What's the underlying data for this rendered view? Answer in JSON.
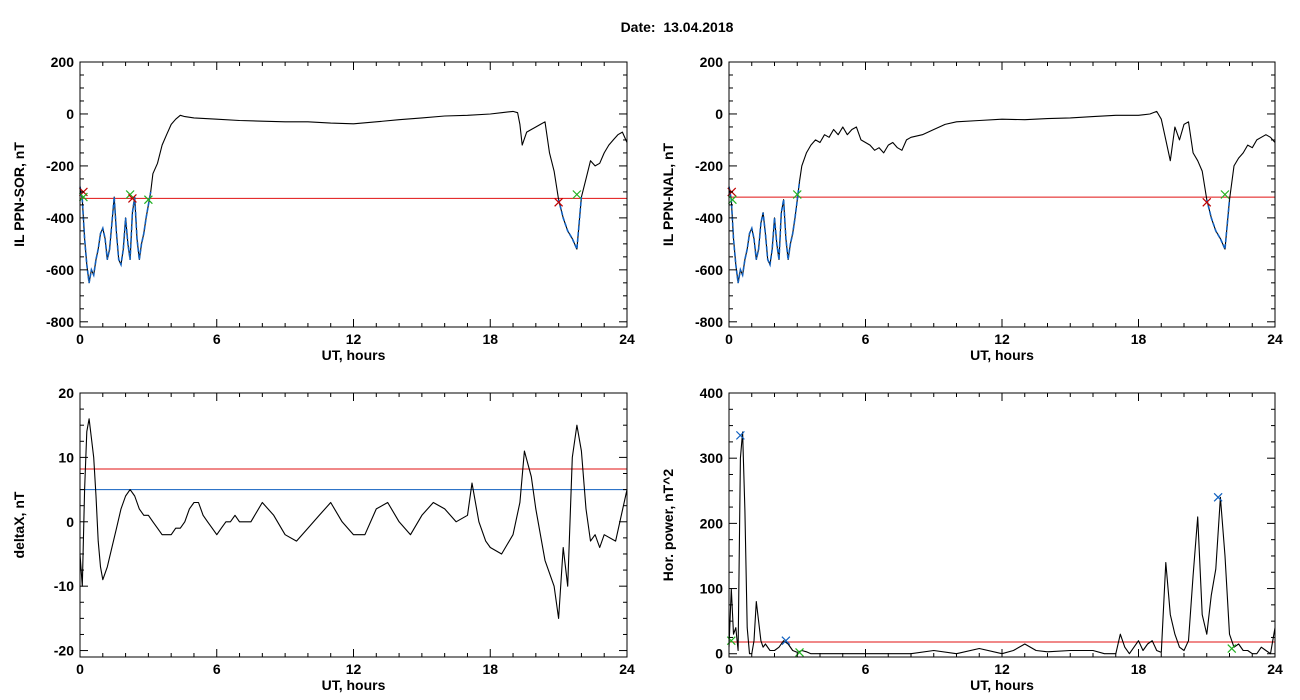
{
  "page": {
    "date_label": "Date:  13.04.2018"
  },
  "colors": {
    "trace": "#000000",
    "threshold_red": "#e01010",
    "threshold_blue": "#1060c0",
    "event_red": "#c00000",
    "event_green": "#20b020",
    "event_blue": "#1060c0"
  },
  "chart_data": [
    {
      "type": "line",
      "id": "ppn-sor",
      "xlabel": "UT, hours",
      "ylabel": "IL PPN-SOR, nT",
      "xlim": [
        0,
        24
      ],
      "ylim": [
        -820,
        200
      ],
      "xticks": [
        0,
        6,
        12,
        18,
        24
      ],
      "yticks": [
        -800,
        -600,
        -400,
        -200,
        0,
        200
      ],
      "series": [
        {
          "x": [
            0,
            0.1,
            0.2,
            0.3,
            0.4,
            0.5,
            0.6,
            0.7,
            0.8,
            0.9,
            1.0,
            1.1,
            1.2,
            1.3,
            1.4,
            1.5,
            1.6,
            1.7,
            1.8,
            1.9,
            2.0,
            2.1,
            2.2,
            2.3,
            2.4,
            2.5,
            2.6,
            2.7,
            2.8,
            2.9,
            3.0,
            3.1,
            3.2,
            3.4,
            3.6,
            3.8,
            4.0,
            4.2,
            4.4,
            4.6,
            5,
            6,
            7,
            8,
            9,
            10,
            11,
            12,
            13,
            14,
            15,
            16,
            17,
            18,
            18.5,
            19,
            19.2,
            19.3,
            19.4,
            19.6,
            19.8,
            20.0,
            20.2,
            20.4,
            20.6,
            20.8,
            21.0,
            21.2,
            21.4,
            21.6,
            21.8,
            22.0,
            22.2,
            22.4,
            22.6,
            22.8,
            23.0,
            23.2,
            23.4,
            23.6,
            23.8,
            24
          ],
          "y": [
            -280,
            -330,
            -480,
            -580,
            -650,
            -600,
            -620,
            -560,
            -520,
            -460,
            -440,
            -480,
            -560,
            -520,
            -420,
            -320,
            -460,
            -560,
            -580,
            -520,
            -400,
            -500,
            -560,
            -380,
            -320,
            -480,
            -560,
            -500,
            -460,
            -400,
            -350,
            -300,
            -230,
            -190,
            -120,
            -80,
            -40,
            -20,
            -5,
            -10,
            -15,
            -20,
            -25,
            -28,
            -30,
            -30,
            -35,
            -38,
            -30,
            -22,
            -15,
            -8,
            -5,
            0,
            5,
            10,
            5,
            -40,
            -120,
            -70,
            -60,
            -50,
            -40,
            -30,
            -150,
            -220,
            -330,
            -400,
            -450,
            -480,
            -520,
            -320,
            -250,
            -180,
            -200,
            -190,
            -150,
            -120,
            -100,
            -80,
            -70,
            -110
          ]
        }
      ],
      "thresholds": [
        {
          "value": -325,
          "color": "red"
        }
      ],
      "highlight_ranges": [
        [
          0,
          3.1
        ],
        [
          21.0,
          22.0
        ]
      ],
      "markers": [
        {
          "x": 0.15,
          "y": -300,
          "color": "red"
        },
        {
          "x": 0.15,
          "y": -320,
          "color": "green"
        },
        {
          "x": 2.2,
          "y": -310,
          "color": "green"
        },
        {
          "x": 2.3,
          "y": -325,
          "color": "red"
        },
        {
          "x": 3.0,
          "y": -330,
          "color": "green"
        },
        {
          "x": 21.0,
          "y": -340,
          "color": "red"
        },
        {
          "x": 21.8,
          "y": -310,
          "color": "green"
        }
      ]
    },
    {
      "type": "line",
      "id": "ppn-nal",
      "xlabel": "UT, hours",
      "ylabel": "IL PPN-NAL, nT",
      "xlim": [
        0,
        24
      ],
      "ylim": [
        -820,
        200
      ],
      "xticks": [
        0,
        6,
        12,
        18,
        24
      ],
      "yticks": [
        -800,
        -600,
        -400,
        -200,
        0,
        200
      ],
      "series": [
        {
          "x": [
            0,
            0.1,
            0.2,
            0.3,
            0.4,
            0.5,
            0.6,
            0.7,
            0.8,
            0.9,
            1.0,
            1.1,
            1.2,
            1.3,
            1.4,
            1.5,
            1.6,
            1.7,
            1.8,
            1.9,
            2.0,
            2.1,
            2.2,
            2.3,
            2.4,
            2.5,
            2.6,
            2.7,
            2.8,
            2.9,
            3.0,
            3.1,
            3.2,
            3.4,
            3.6,
            3.8,
            4.0,
            4.2,
            4.4,
            4.6,
            4.8,
            5.0,
            5.2,
            5.4,
            5.6,
            5.8,
            6.0,
            6.2,
            6.4,
            6.6,
            6.8,
            7.0,
            7.2,
            7.4,
            7.6,
            7.8,
            8.0,
            8.5,
            9,
            9.5,
            10,
            11,
            12,
            13,
            14,
            15,
            16,
            17,
            18,
            18.5,
            18.8,
            19.0,
            19.2,
            19.4,
            19.6,
            19.8,
            20.0,
            20.2,
            20.4,
            20.6,
            20.8,
            21.0,
            21.2,
            21.4,
            21.6,
            21.8,
            22.0,
            22.2,
            22.4,
            22.6,
            22.8,
            23.0,
            23.2,
            23.4,
            23.6,
            23.8,
            24
          ],
          "y": [
            -280,
            -330,
            -480,
            -580,
            -650,
            -600,
            -620,
            -560,
            -520,
            -460,
            -440,
            -480,
            -560,
            -520,
            -420,
            -380,
            -460,
            -560,
            -580,
            -520,
            -400,
            -500,
            -560,
            -380,
            -330,
            -480,
            -560,
            -500,
            -460,
            -400,
            -330,
            -260,
            -200,
            -150,
            -120,
            -100,
            -110,
            -80,
            -90,
            -60,
            -80,
            -50,
            -80,
            -60,
            -50,
            -100,
            -110,
            -120,
            -140,
            -130,
            -150,
            -120,
            -110,
            -130,
            -140,
            -100,
            -90,
            -80,
            -60,
            -40,
            -30,
            -25,
            -20,
            -22,
            -18,
            -15,
            -10,
            -5,
            -5,
            0,
            10,
            -20,
            -100,
            -180,
            -50,
            -100,
            -40,
            -30,
            -150,
            -180,
            -220,
            -330,
            -400,
            -450,
            -480,
            -520,
            -330,
            -200,
            -170,
            -150,
            -120,
            -130,
            -100,
            -90,
            -80,
            -90,
            -110
          ]
        }
      ],
      "thresholds": [
        {
          "value": -320,
          "color": "red"
        }
      ],
      "highlight_ranges": [
        [
          0,
          3.1
        ],
        [
          21.0,
          22.0
        ]
      ],
      "markers": [
        {
          "x": 0.12,
          "y": -300,
          "color": "red"
        },
        {
          "x": 0.15,
          "y": -330,
          "color": "green"
        },
        {
          "x": 3.0,
          "y": -310,
          "color": "green"
        },
        {
          "x": 21.0,
          "y": -340,
          "color": "red"
        },
        {
          "x": 21.8,
          "y": -310,
          "color": "green"
        }
      ]
    },
    {
      "type": "line",
      "id": "deltax",
      "xlabel": "UT, hours",
      "ylabel": "deltaX, nT",
      "xlim": [
        0,
        24
      ],
      "ylim": [
        -21,
        20
      ],
      "xticks": [
        0,
        6,
        12,
        18,
        24
      ],
      "yticks": [
        -20,
        -10,
        0,
        10,
        20
      ],
      "series": [
        {
          "x": [
            0,
            0.1,
            0.2,
            0.3,
            0.4,
            0.5,
            0.6,
            0.7,
            0.8,
            0.9,
            1.0,
            1.2,
            1.4,
            1.6,
            1.8,
            2.0,
            2.2,
            2.4,
            2.6,
            2.8,
            3.0,
            3.2,
            3.4,
            3.6,
            3.8,
            4.0,
            4.2,
            4.4,
            4.6,
            4.8,
            5.0,
            5.2,
            5.4,
            5.6,
            5.8,
            6.0,
            6.2,
            6.4,
            6.6,
            6.8,
            7.0,
            7.5,
            8.0,
            8.5,
            9.0,
            9.5,
            10.0,
            10.5,
            11.0,
            11.5,
            12.0,
            12.5,
            13.0,
            13.5,
            14.0,
            14.5,
            15.0,
            15.5,
            16.0,
            16.5,
            17.0,
            17.2,
            17.5,
            17.8,
            18.0,
            18.5,
            19.0,
            19.3,
            19.5,
            19.8,
            20.0,
            20.4,
            20.8,
            21.0,
            21.2,
            21.4,
            21.6,
            21.8,
            22.0,
            22.2,
            22.4,
            22.6,
            22.8,
            23.0,
            23.5,
            24.0
          ],
          "y": [
            -5,
            -10,
            5,
            14,
            16,
            13,
            10,
            4,
            -3,
            -7,
            -9,
            -7,
            -4,
            -1,
            2,
            4,
            5,
            4,
            2,
            1,
            1,
            0,
            -1,
            -2,
            -2,
            -2,
            -1,
            -1,
            0,
            2,
            3,
            3,
            1,
            0,
            -1,
            -2,
            -1,
            0,
            0,
            1,
            0,
            0,
            3,
            1,
            -2,
            -3,
            -1,
            1,
            3,
            0,
            -2,
            -2,
            2,
            3,
            0,
            -2,
            1,
            3,
            2,
            0,
            1,
            6,
            0,
            -3,
            -4,
            -5,
            -2,
            3,
            11,
            7,
            2,
            -6,
            -10,
            -15,
            -4,
            -10,
            10,
            15,
            11,
            2,
            -3,
            -2,
            -4,
            -2,
            -3,
            5
          ]
        }
      ],
      "thresholds": [
        {
          "value": 8.2,
          "color": "red"
        },
        {
          "value": 5,
          "color": "blue"
        }
      ]
    },
    {
      "type": "line",
      "id": "hor-power",
      "xlabel": "UT, hours",
      "ylabel": "Hor. power, nT^2",
      "xlim": [
        0,
        24
      ],
      "ylim": [
        -5,
        400
      ],
      "xticks": [
        0,
        6,
        12,
        18,
        24
      ],
      "yticks": [
        0,
        100,
        200,
        300,
        400
      ],
      "series": [
        {
          "x": [
            0,
            0.1,
            0.2,
            0.3,
            0.4,
            0.5,
            0.6,
            0.7,
            0.8,
            0.9,
            1.0,
            1.1,
            1.2,
            1.3,
            1.4,
            1.5,
            1.6,
            1.8,
            2.0,
            2.2,
            2.4,
            2.6,
            2.8,
            3.0,
            3.2,
            3.4,
            3.6,
            3.8,
            4.0,
            4.5,
            5,
            6,
            7,
            8,
            9,
            10,
            11,
            12,
            12.5,
            13,
            13.5,
            14,
            15,
            16,
            16.5,
            17.0,
            17.2,
            17.4,
            17.6,
            18.0,
            18.2,
            18.4,
            18.6,
            18.8,
            19.0,
            19.2,
            19.4,
            19.6,
            19.8,
            20.0,
            20.2,
            20.4,
            20.6,
            20.8,
            21.0,
            21.2,
            21.4,
            21.6,
            21.8,
            22.0,
            22.2,
            22.4,
            22.6,
            22.8,
            23.0,
            23.2,
            23.4,
            23.6,
            23.8,
            24.0
          ],
          "y": [
            10,
            100,
            30,
            40,
            5,
            300,
            340,
            220,
            40,
            0,
            0,
            20,
            80,
            50,
            20,
            10,
            15,
            5,
            5,
            10,
            20,
            15,
            5,
            2,
            5,
            3,
            0,
            0,
            0,
            0,
            0,
            0,
            0,
            0,
            5,
            0,
            8,
            0,
            5,
            15,
            5,
            3,
            5,
            5,
            0,
            0,
            30,
            10,
            0,
            20,
            5,
            15,
            20,
            5,
            2,
            140,
            60,
            30,
            10,
            5,
            20,
            120,
            210,
            60,
            30,
            90,
            130,
            240,
            150,
            30,
            10,
            15,
            5,
            5,
            0,
            0,
            10,
            5,
            0,
            40
          ]
        }
      ],
      "thresholds": [
        {
          "value": 18,
          "color": "red"
        }
      ],
      "markers": [
        {
          "x": 0.5,
          "y": 335,
          "color": "blue"
        },
        {
          "x": 2.5,
          "y": 20,
          "color": "blue"
        },
        {
          "x": 3.1,
          "y": 2,
          "color": "green"
        },
        {
          "x": 21.5,
          "y": 240,
          "color": "blue"
        },
        {
          "x": 22.1,
          "y": 8,
          "color": "green"
        },
        {
          "x": 0.1,
          "y": 20,
          "color": "green"
        }
      ]
    }
  ]
}
